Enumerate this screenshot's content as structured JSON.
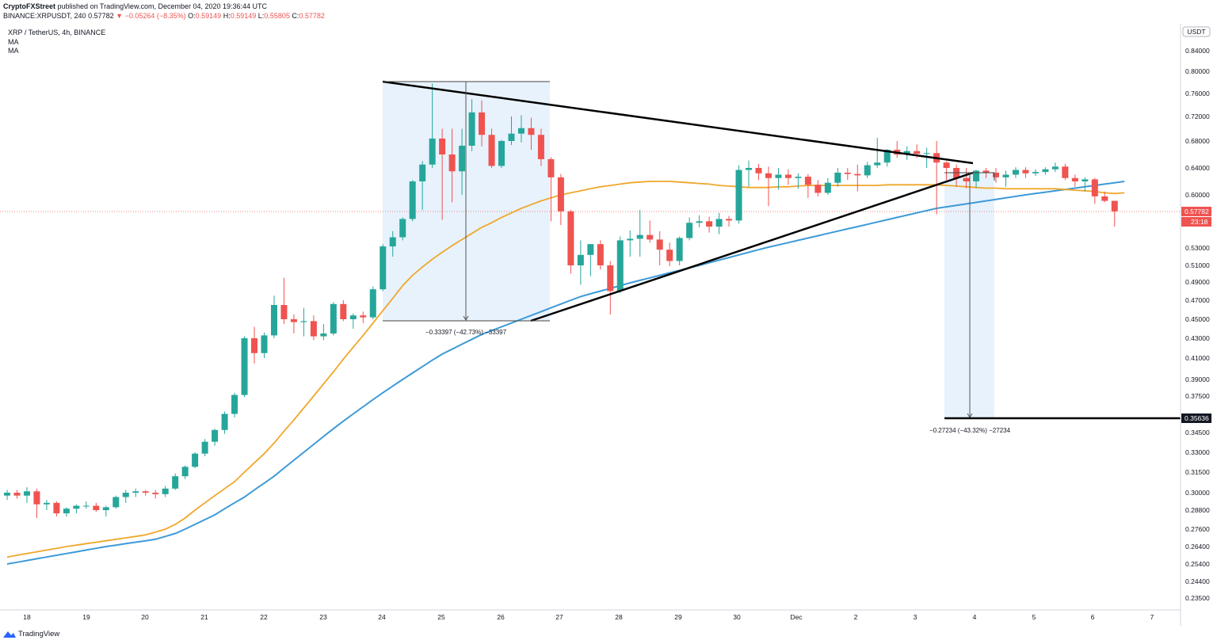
{
  "header": {
    "author": "CryptoFXStreet",
    "published": "published on TradingView.com, December 04, 2020 19:36:44 UTC",
    "symbol_line": "BINANCE:XRPUSDT, 240",
    "last": "0.57782",
    "change_arrow": "▼",
    "change": "−0.05264 (−8.35%)",
    "ohlc": {
      "o_label": "O:",
      "o": "0.59149",
      "h_label": "H:",
      "h": "0.59149",
      "l_label": "L:",
      "l": "0.55805",
      "c_label": "C:",
      "c": "0.57782"
    }
  },
  "legend": {
    "symbol": "XRP / TetherUS, 4h, BINANCE",
    "ma1": "MA",
    "ma2": "MA"
  },
  "brand": {
    "name": "TradingView"
  },
  "colors": {
    "up": "#26a69a",
    "down": "#ef5350",
    "ma_fast": "#f0a72b",
    "ma_slow": "#3d9ad8",
    "trendline": "#000000",
    "range_fill": "#e3f0fb",
    "price_tag": "#ef5350"
  },
  "chart_data": {
    "type": "candlestick",
    "symbol": "XRP / TetherUS",
    "interval": "4h",
    "exchange": "BINANCE",
    "currency": "USDT",
    "price_axis": {
      "ticks": [
        "0.84000",
        "0.80000",
        "0.76000",
        "0.72000",
        "0.68000",
        "0.64000",
        "0.60000",
        "0.53000",
        "0.51000",
        "0.49000",
        "0.47000",
        "0.45000",
        "0.43000",
        "0.41000",
        "0.39000",
        "0.37500",
        "0.34500",
        "0.33000",
        "0.31500",
        "0.30000",
        "0.28800",
        "0.27600",
        "0.26400",
        "0.25400",
        "0.24400",
        "0.23500"
      ],
      "current_price": "0.57782",
      "countdown": "23:18",
      "target_price": "0.35636"
    },
    "time_axis": {
      "ticks": [
        "18",
        "19",
        "20",
        "21",
        "22",
        "23",
        "24",
        "25",
        "26",
        "27",
        "28",
        "29",
        "30",
        "Dec",
        "2",
        "3",
        "4",
        "5",
        "6",
        "7"
      ]
    },
    "candles": [
      {
        "o": 0.298,
        "h": 0.302,
        "l": 0.295,
        "c": 0.3
      },
      {
        "o": 0.3,
        "h": 0.302,
        "l": 0.296,
        "c": 0.298
      },
      {
        "o": 0.298,
        "h": 0.304,
        "l": 0.293,
        "c": 0.301
      },
      {
        "o": 0.301,
        "h": 0.303,
        "l": 0.283,
        "c": 0.292
      },
      {
        "o": 0.292,
        "h": 0.295,
        "l": 0.288,
        "c": 0.293
      },
      {
        "o": 0.293,
        "h": 0.294,
        "l": 0.284,
        "c": 0.286
      },
      {
        "o": 0.286,
        "h": 0.29,
        "l": 0.284,
        "c": 0.289
      },
      {
        "o": 0.289,
        "h": 0.292,
        "l": 0.286,
        "c": 0.291
      },
      {
        "o": 0.291,
        "h": 0.294,
        "l": 0.289,
        "c": 0.291
      },
      {
        "o": 0.291,
        "h": 0.293,
        "l": 0.287,
        "c": 0.288
      },
      {
        "o": 0.288,
        "h": 0.291,
        "l": 0.284,
        "c": 0.29
      },
      {
        "o": 0.29,
        "h": 0.298,
        "l": 0.289,
        "c": 0.297
      },
      {
        "o": 0.297,
        "h": 0.302,
        "l": 0.293,
        "c": 0.3
      },
      {
        "o": 0.3,
        "h": 0.303,
        "l": 0.297,
        "c": 0.301
      },
      {
        "o": 0.301,
        "h": 0.302,
        "l": 0.298,
        "c": 0.3
      },
      {
        "o": 0.3,
        "h": 0.302,
        "l": 0.296,
        "c": 0.299
      },
      {
        "o": 0.299,
        "h": 0.305,
        "l": 0.297,
        "c": 0.303
      },
      {
        "o": 0.303,
        "h": 0.314,
        "l": 0.302,
        "c": 0.312
      },
      {
        "o": 0.312,
        "h": 0.32,
        "l": 0.31,
        "c": 0.319
      },
      {
        "o": 0.319,
        "h": 0.33,
        "l": 0.318,
        "c": 0.329
      },
      {
        "o": 0.329,
        "h": 0.34,
        "l": 0.327,
        "c": 0.338
      },
      {
        "o": 0.338,
        "h": 0.348,
        "l": 0.335,
        "c": 0.347
      },
      {
        "o": 0.347,
        "h": 0.362,
        "l": 0.344,
        "c": 0.36
      },
      {
        "o": 0.36,
        "h": 0.378,
        "l": 0.357,
        "c": 0.376
      },
      {
        "o": 0.376,
        "h": 0.432,
        "l": 0.374,
        "c": 0.43
      },
      {
        "o": 0.43,
        "h": 0.442,
        "l": 0.405,
        "c": 0.415
      },
      {
        "o": 0.415,
        "h": 0.436,
        "l": 0.41,
        "c": 0.433
      },
      {
        "o": 0.433,
        "h": 0.475,
        "l": 0.43,
        "c": 0.465
      },
      {
        "o": 0.465,
        "h": 0.495,
        "l": 0.445,
        "c": 0.45
      },
      {
        "o": 0.45,
        "h": 0.455,
        "l": 0.435,
        "c": 0.447
      },
      {
        "o": 0.447,
        "h": 0.462,
        "l": 0.432,
        "c": 0.448
      },
      {
        "o": 0.448,
        "h": 0.454,
        "l": 0.428,
        "c": 0.432
      },
      {
        "o": 0.432,
        "h": 0.445,
        "l": 0.428,
        "c": 0.435
      },
      {
        "o": 0.435,
        "h": 0.468,
        "l": 0.433,
        "c": 0.466
      },
      {
        "o": 0.466,
        "h": 0.47,
        "l": 0.448,
        "c": 0.45
      },
      {
        "o": 0.45,
        "h": 0.456,
        "l": 0.44,
        "c": 0.454
      },
      {
        "o": 0.454,
        "h": 0.458,
        "l": 0.446,
        "c": 0.452
      },
      {
        "o": 0.452,
        "h": 0.485,
        "l": 0.45,
        "c": 0.482
      },
      {
        "o": 0.482,
        "h": 0.535,
        "l": 0.48,
        "c": 0.532
      },
      {
        "o": 0.532,
        "h": 0.552,
        "l": 0.52,
        "c": 0.544
      },
      {
        "o": 0.544,
        "h": 0.57,
        "l": 0.54,
        "c": 0.568
      },
      {
        "o": 0.568,
        "h": 0.622,
        "l": 0.565,
        "c": 0.62
      },
      {
        "o": 0.62,
        "h": 0.65,
        "l": 0.58,
        "c": 0.645
      },
      {
        "o": 0.645,
        "h": 0.778,
        "l": 0.64,
        "c": 0.684
      },
      {
        "o": 0.684,
        "h": 0.7,
        "l": 0.567,
        "c": 0.66
      },
      {
        "o": 0.66,
        "h": 0.7,
        "l": 0.59,
        "c": 0.635
      },
      {
        "o": 0.635,
        "h": 0.7,
        "l": 0.6,
        "c": 0.673
      },
      {
        "o": 0.673,
        "h": 0.75,
        "l": 0.665,
        "c": 0.727
      },
      {
        "o": 0.727,
        "h": 0.748,
        "l": 0.672,
        "c": 0.69
      },
      {
        "o": 0.69,
        "h": 0.7,
        "l": 0.64,
        "c": 0.643
      },
      {
        "o": 0.643,
        "h": 0.682,
        "l": 0.64,
        "c": 0.68
      },
      {
        "o": 0.68,
        "h": 0.72,
        "l": 0.674,
        "c": 0.692
      },
      {
        "o": 0.692,
        "h": 0.722,
        "l": 0.678,
        "c": 0.701
      },
      {
        "o": 0.701,
        "h": 0.718,
        "l": 0.667,
        "c": 0.69
      },
      {
        "o": 0.69,
        "h": 0.7,
        "l": 0.643,
        "c": 0.653
      },
      {
        "o": 0.653,
        "h": 0.656,
        "l": 0.565,
        "c": 0.626
      },
      {
        "o": 0.626,
        "h": 0.631,
        "l": 0.56,
        "c": 0.578
      },
      {
        "o": 0.578,
        "h": 0.58,
        "l": 0.5,
        "c": 0.51
      },
      {
        "o": 0.51,
        "h": 0.54,
        "l": 0.487,
        "c": 0.522
      },
      {
        "o": 0.522,
        "h": 0.535,
        "l": 0.497,
        "c": 0.535
      },
      {
        "o": 0.535,
        "h": 0.54,
        "l": 0.505,
        "c": 0.51
      },
      {
        "o": 0.51,
        "h": 0.515,
        "l": 0.455,
        "c": 0.48
      },
      {
        "o": 0.48,
        "h": 0.545,
        "l": 0.478,
        "c": 0.54
      },
      {
        "o": 0.54,
        "h": 0.553,
        "l": 0.52,
        "c": 0.542
      },
      {
        "o": 0.542,
        "h": 0.58,
        "l": 0.52,
        "c": 0.547
      },
      {
        "o": 0.547,
        "h": 0.566,
        "l": 0.537,
        "c": 0.541
      },
      {
        "o": 0.541,
        "h": 0.552,
        "l": 0.51,
        "c": 0.528
      },
      {
        "o": 0.528,
        "h": 0.537,
        "l": 0.509,
        "c": 0.515
      },
      {
        "o": 0.515,
        "h": 0.545,
        "l": 0.51,
        "c": 0.543
      },
      {
        "o": 0.543,
        "h": 0.57,
        "l": 0.54,
        "c": 0.563
      },
      {
        "o": 0.563,
        "h": 0.573,
        "l": 0.557,
        "c": 0.565
      },
      {
        "o": 0.565,
        "h": 0.571,
        "l": 0.55,
        "c": 0.558
      },
      {
        "o": 0.558,
        "h": 0.576,
        "l": 0.548,
        "c": 0.568
      },
      {
        "o": 0.568,
        "h": 0.572,
        "l": 0.558,
        "c": 0.566
      },
      {
        "o": 0.566,
        "h": 0.644,
        "l": 0.562,
        "c": 0.637
      },
      {
        "o": 0.637,
        "h": 0.651,
        "l": 0.612,
        "c": 0.64
      },
      {
        "o": 0.64,
        "h": 0.646,
        "l": 0.622,
        "c": 0.632
      },
      {
        "o": 0.632,
        "h": 0.642,
        "l": 0.585,
        "c": 0.625
      },
      {
        "o": 0.625,
        "h": 0.64,
        "l": 0.608,
        "c": 0.63
      },
      {
        "o": 0.63,
        "h": 0.638,
        "l": 0.615,
        "c": 0.625
      },
      {
        "o": 0.625,
        "h": 0.632,
        "l": 0.609,
        "c": 0.627
      },
      {
        "o": 0.627,
        "h": 0.631,
        "l": 0.596,
        "c": 0.615
      },
      {
        "o": 0.615,
        "h": 0.622,
        "l": 0.598,
        "c": 0.603
      },
      {
        "o": 0.603,
        "h": 0.625,
        "l": 0.6,
        "c": 0.618
      },
      {
        "o": 0.618,
        "h": 0.64,
        "l": 0.612,
        "c": 0.633
      },
      {
        "o": 0.633,
        "h": 0.64,
        "l": 0.622,
        "c": 0.631
      },
      {
        "o": 0.631,
        "h": 0.645,
        "l": 0.605,
        "c": 0.629
      },
      {
        "o": 0.629,
        "h": 0.649,
        "l": 0.625,
        "c": 0.644
      },
      {
        "o": 0.644,
        "h": 0.685,
        "l": 0.64,
        "c": 0.648
      },
      {
        "o": 0.648,
        "h": 0.668,
        "l": 0.642,
        "c": 0.667
      },
      {
        "o": 0.667,
        "h": 0.68,
        "l": 0.655,
        "c": 0.66
      },
      {
        "o": 0.66,
        "h": 0.672,
        "l": 0.652,
        "c": 0.665
      },
      {
        "o": 0.665,
        "h": 0.675,
        "l": 0.655,
        "c": 0.661
      },
      {
        "o": 0.661,
        "h": 0.67,
        "l": 0.64,
        "c": 0.662
      },
      {
        "o": 0.662,
        "h": 0.68,
        "l": 0.574,
        "c": 0.648
      },
      {
        "o": 0.648,
        "h": 0.65,
        "l": 0.622,
        "c": 0.64
      },
      {
        "o": 0.64,
        "h": 0.645,
        "l": 0.612,
        "c": 0.625
      },
      {
        "o": 0.625,
        "h": 0.64,
        "l": 0.61,
        "c": 0.62
      },
      {
        "o": 0.62,
        "h": 0.637,
        "l": 0.61,
        "c": 0.636
      },
      {
        "o": 0.636,
        "h": 0.64,
        "l": 0.625,
        "c": 0.633
      },
      {
        "o": 0.633,
        "h": 0.64,
        "l": 0.618,
        "c": 0.626
      },
      {
        "o": 0.626,
        "h": 0.636,
        "l": 0.612,
        "c": 0.63
      },
      {
        "o": 0.63,
        "h": 0.641,
        "l": 0.625,
        "c": 0.637
      },
      {
        "o": 0.637,
        "h": 0.641,
        "l": 0.625,
        "c": 0.632
      },
      {
        "o": 0.632,
        "h": 0.638,
        "l": 0.628,
        "c": 0.634
      },
      {
        "o": 0.634,
        "h": 0.641,
        "l": 0.63,
        "c": 0.638
      },
      {
        "o": 0.638,
        "h": 0.648,
        "l": 0.634,
        "c": 0.642
      },
      {
        "o": 0.642,
        "h": 0.646,
        "l": 0.622,
        "c": 0.625
      },
      {
        "o": 0.625,
        "h": 0.63,
        "l": 0.612,
        "c": 0.62
      },
      {
        "o": 0.62,
        "h": 0.626,
        "l": 0.605,
        "c": 0.623
      },
      {
        "o": 0.623,
        "h": 0.625,
        "l": 0.588,
        "c": 0.598
      },
      {
        "o": 0.598,
        "h": 0.605,
        "l": 0.59,
        "c": 0.592
      },
      {
        "o": 0.592,
        "h": 0.592,
        "l": 0.558,
        "c": 0.578
      }
    ],
    "ma_fast": [
      0.258,
      0.259,
      0.26,
      0.261,
      0.262,
      0.263,
      0.264,
      0.265,
      0.266,
      0.267,
      0.268,
      0.269,
      0.27,
      0.271,
      0.272,
      0.274,
      0.276,
      0.279,
      0.283,
      0.288,
      0.293,
      0.298,
      0.303,
      0.308,
      0.315,
      0.322,
      0.329,
      0.337,
      0.346,
      0.355,
      0.365,
      0.375,
      0.386,
      0.397,
      0.409,
      0.421,
      0.433,
      0.446,
      0.459,
      0.472,
      0.486,
      0.498,
      0.508,
      0.517,
      0.525,
      0.533,
      0.541,
      0.549,
      0.557,
      0.563,
      0.57,
      0.576,
      0.582,
      0.587,
      0.592,
      0.596,
      0.6,
      0.603,
      0.606,
      0.609,
      0.612,
      0.614,
      0.616,
      0.618,
      0.619,
      0.62,
      0.62,
      0.62,
      0.619,
      0.618,
      0.617,
      0.616,
      0.614,
      0.613,
      0.612,
      0.611,
      0.611,
      0.611,
      0.612,
      0.612,
      0.613,
      0.614,
      0.614,
      0.614,
      0.614,
      0.614,
      0.614,
      0.614,
      0.614,
      0.615,
      0.615,
      0.615,
      0.615,
      0.615,
      0.615,
      0.614,
      0.613,
      0.612,
      0.611,
      0.61,
      0.61,
      0.609,
      0.609,
      0.609,
      0.609,
      0.609,
      0.609,
      0.608,
      0.607,
      0.606,
      0.605,
      0.603,
      0.602,
      0.603
    ],
    "ma_slow": [
      0.254,
      0.255,
      0.256,
      0.257,
      0.258,
      0.259,
      0.26,
      0.261,
      0.262,
      0.263,
      0.264,
      0.265,
      0.266,
      0.267,
      0.268,
      0.269,
      0.271,
      0.273,
      0.276,
      0.279,
      0.282,
      0.285,
      0.289,
      0.293,
      0.297,
      0.302,
      0.307,
      0.312,
      0.318,
      0.324,
      0.33,
      0.336,
      0.342,
      0.348,
      0.354,
      0.36,
      0.366,
      0.372,
      0.378,
      0.384,
      0.39,
      0.396,
      0.402,
      0.408,
      0.414,
      0.419,
      0.424,
      0.429,
      0.434,
      0.438,
      0.442,
      0.446,
      0.45,
      0.454,
      0.458,
      0.462,
      0.466,
      0.47,
      0.474,
      0.477,
      0.48,
      0.483,
      0.486,
      0.489,
      0.492,
      0.495,
      0.498,
      0.501,
      0.504,
      0.507,
      0.51,
      0.513,
      0.516,
      0.519,
      0.522,
      0.525,
      0.528,
      0.531,
      0.534,
      0.537,
      0.54,
      0.543,
      0.546,
      0.549,
      0.552,
      0.555,
      0.558,
      0.561,
      0.564,
      0.567,
      0.57,
      0.573,
      0.576,
      0.579,
      0.582,
      0.584,
      0.586,
      0.588,
      0.59,
      0.592,
      0.594,
      0.596,
      0.598,
      0.6,
      0.602,
      0.604,
      0.606,
      0.608,
      0.61,
      0.612,
      0.614,
      0.616,
      0.618,
      0.62
    ],
    "measures": [
      {
        "label": "−0.33397 (−42.73%) −33397"
      },
      {
        "label": "−0.27234 (−43.32%) −27234"
      }
    ]
  }
}
